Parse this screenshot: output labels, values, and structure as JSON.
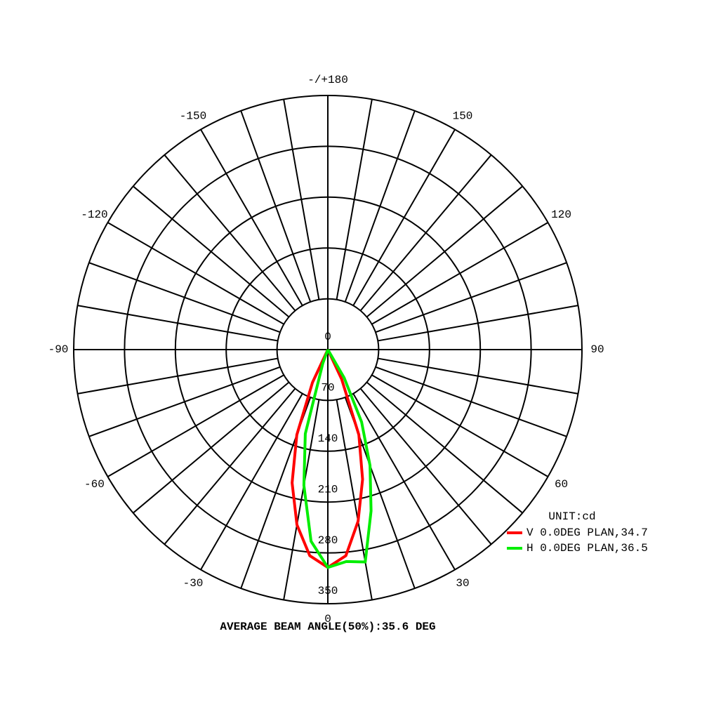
{
  "chart_data": {
    "type": "polar",
    "x": [
      -30,
      -25,
      -20,
      -15,
      -10,
      -5,
      0,
      5,
      10,
      15,
      20,
      25,
      30,
      35
    ],
    "series": [
      {
        "name": "V 0.0DEG PLAN,34.7",
        "color": "#ff0000",
        "values": [
          0,
          50,
          125,
          190,
          245,
          285,
          300,
          285,
          240,
          185,
          125,
          45,
          0,
          0
        ]
      },
      {
        "name": "H 0.0DEG PLAN,36.5",
        "color": "#00ee00",
        "values": [
          0,
          0,
          20,
          120,
          190,
          265,
          300,
          293,
          297,
          230,
          170,
          110,
          45,
          0
        ]
      }
    ],
    "xlim": [
      -180,
      180
    ],
    "xticks": [
      0,
      30,
      60,
      90,
      120,
      150,
      {
        "value": 180,
        "label": "-/+180"
      },
      -150,
      -120,
      -90,
      -60,
      -30
    ],
    "xgrid": [
      -170,
      -160,
      -150,
      -140,
      -130,
      -120,
      -110,
      -100,
      -90,
      -80,
      -70,
      -60,
      -50,
      -40,
      -30,
      -20,
      -10,
      0,
      10,
      20,
      30,
      40,
      50,
      60,
      70,
      80,
      90,
      100,
      110,
      120,
      130,
      140,
      150,
      160,
      170,
      180
    ],
    "ylim": [
      0,
      350
    ],
    "yticks": [
      0,
      70,
      140,
      210,
      280,
      350
    ],
    "unit_label": "UNIT:cd",
    "annotation": "AVERAGE BEAM ANGLE(50%):35.6 DEG"
  }
}
